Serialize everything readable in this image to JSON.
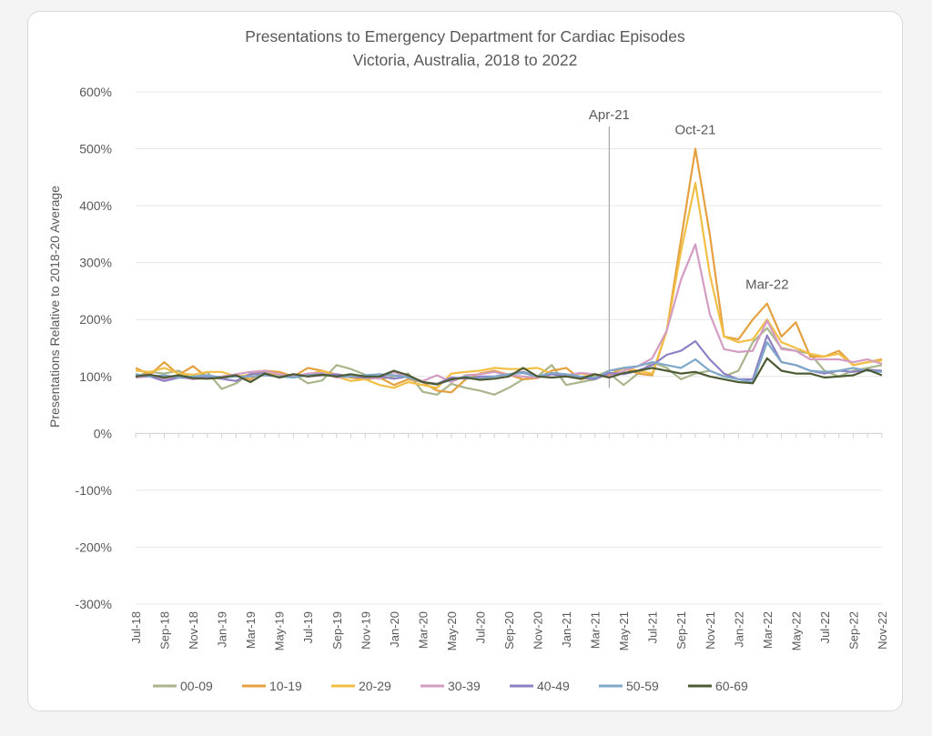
{
  "chart_data": {
    "type": "line",
    "title": "Presentations to Emergency Department for Cardiac Episodes",
    "subtitle": "Victoria, Australia, 2018 to 2022",
    "ylabel": "Presentations Relative to 2018-20 Average",
    "xlabel": "",
    "ylim": [
      -300,
      600
    ],
    "yticks": [
      "600%",
      "500%",
      "400%",
      "300%",
      "200%",
      "100%",
      "0%",
      "-100%",
      "-200%",
      "-300%"
    ],
    "ytick_values": [
      600,
      500,
      400,
      300,
      200,
      100,
      0,
      -100,
      -200,
      -300
    ],
    "grid": true,
    "legend_position": "bottom",
    "categories": [
      "Jul-18",
      "Aug-18",
      "Sep-18",
      "Oct-18",
      "Nov-18",
      "Dec-18",
      "Jan-19",
      "Feb-19",
      "Mar-19",
      "Apr-19",
      "May-19",
      "Jun-19",
      "Jul-19",
      "Aug-19",
      "Sep-19",
      "Oct-19",
      "Nov-19",
      "Dec-19",
      "Jan-20",
      "Feb-20",
      "Mar-20",
      "Apr-20",
      "May-20",
      "Jun-20",
      "Jul-20",
      "Aug-20",
      "Sep-20",
      "Oct-20",
      "Nov-20",
      "Dec-20",
      "Jan-21",
      "Feb-21",
      "Mar-21",
      "Apr-21",
      "May-21",
      "Jun-21",
      "Jul-21",
      "Aug-21",
      "Sep-21",
      "Oct-21",
      "Nov-21",
      "Dec-21",
      "Jan-22",
      "Feb-22",
      "Mar-22",
      "Apr-22",
      "May-22",
      "Jun-22",
      "Jul-22",
      "Aug-22",
      "Sep-22",
      "Oct-22",
      "Nov-22"
    ],
    "tick_labels": [
      "Jul-18",
      "Sep-18",
      "Nov-18",
      "Jan-19",
      "Mar-19",
      "May-19",
      "Jul-19",
      "Sep-19",
      "Nov-19",
      "Jan-20",
      "Mar-20",
      "May-20",
      "Jul-20",
      "Sep-20",
      "Nov-20",
      "Jan-21",
      "Mar-21",
      "May-21",
      "Jul-21",
      "Sep-21",
      "Nov-21",
      "Jan-22",
      "Mar-22",
      "May-22",
      "Jul-22",
      "Sep-22",
      "Nov-22"
    ],
    "annotations": [
      {
        "label": "Apr-21",
        "category": "Apr-21",
        "kind": "vline"
      },
      {
        "label": "Oct-21",
        "category": "Oct-21",
        "value": 500,
        "kind": "text"
      },
      {
        "label": "Mar-22",
        "category": "Mar-22",
        "value": 228,
        "kind": "text"
      }
    ],
    "series": [
      {
        "name": "00-09",
        "color": "#a9b68c",
        "values": [
          100,
          108,
          105,
          110,
          95,
          108,
          78,
          88,
          105,
          110,
          100,
          104,
          88,
          93,
          120,
          113,
          103,
          96,
          100,
          105,
          73,
          68,
          87,
          80,
          75,
          68,
          80,
          95,
          100,
          120,
          85,
          90,
          95,
          105,
          85,
          105,
          125,
          115,
          95,
          105,
          110,
          100,
          110,
          160,
          185,
          150,
          145,
          140,
          110,
          100,
          110,
          115,
          120
        ]
      },
      {
        "name": "10-19",
        "color": "#e5a13f",
        "values": [
          115,
          103,
          125,
          103,
          118,
          98,
          96,
          103,
          95,
          110,
          108,
          100,
          115,
          110,
          103,
          98,
          95,
          98,
          85,
          95,
          90,
          75,
          72,
          95,
          105,
          110,
          103,
          95,
          97,
          110,
          115,
          95,
          100,
          103,
          115,
          105,
          102,
          180,
          340,
          500,
          350,
          170,
          165,
          200,
          228,
          170,
          195,
          135,
          135,
          145,
          120,
          125,
          130
        ]
      },
      {
        "name": "20-29",
        "color": "#f1bf45",
        "values": [
          110,
          108,
          115,
          105,
          103,
          108,
          108,
          100,
          103,
          110,
          100,
          100,
          103,
          110,
          100,
          92,
          95,
          85,
          80,
          90,
          85,
          80,
          105,
          108,
          110,
          115,
          113,
          113,
          115,
          105,
          100,
          105,
          100,
          110,
          115,
          110,
          105,
          180,
          320,
          440,
          280,
          170,
          160,
          165,
          200,
          160,
          150,
          140,
          135,
          140,
          120,
          125,
          128
        ]
      },
      {
        "name": "30-39",
        "color": "#d39cc2",
        "values": [
          98,
          100,
          96,
          100,
          95,
          98,
          100,
          104,
          108,
          110,
          104,
          100,
          105,
          106,
          98,
          100,
          98,
          96,
          108,
          98,
          92,
          102,
          90,
          102,
          104,
          108,
          102,
          100,
          98,
          104,
          102,
          106,
          104,
          100,
          110,
          118,
          132,
          180,
          270,
          332,
          210,
          148,
          143,
          145,
          198,
          148,
          145,
          130,
          130,
          130,
          125,
          130,
          122
        ]
      },
      {
        "name": "40-49",
        "color": "#8f7fc4",
        "values": [
          102,
          100,
          92,
          98,
          97,
          100,
          96,
          92,
          104,
          106,
          98,
          104,
          100,
          102,
          104,
          100,
          98,
          100,
          96,
          100,
          90,
          87,
          98,
          96,
          100,
          100,
          104,
          108,
          100,
          104,
          100,
          98,
          95,
          106,
          104,
          110,
          120,
          138,
          145,
          162,
          130,
          105,
          95,
          95,
          172,
          125,
          120,
          110,
          105,
          110,
          108,
          112,
          110
        ]
      },
      {
        "name": "50-59",
        "color": "#7ea7c9",
        "values": [
          104,
          100,
          102,
          98,
          100,
          102,
          98,
          100,
          100,
          102,
          100,
          98,
          102,
          104,
          100,
          100,
          102,
          104,
          102,
          98,
          90,
          86,
          94,
          100,
          96,
          100,
          104,
          106,
          100,
          106,
          104,
          100,
          98,
          110,
          115,
          118,
          125,
          120,
          115,
          130,
          110,
          100,
          95,
          90,
          160,
          125,
          120,
          110,
          108,
          110,
          115,
          110,
          108
        ]
      },
      {
        "name": "60-69",
        "color": "#4d5b34",
        "values": [
          100,
          103,
          98,
          102,
          97,
          96,
          98,
          102,
          90,
          105,
          98,
          104,
          100,
          103,
          100,
          104,
          100,
          100,
          110,
          102,
          90,
          86,
          95,
          98,
          94,
          96,
          100,
          115,
          100,
          98,
          100,
          96,
          104,
          98,
          106,
          110,
          115,
          110,
          105,
          108,
          100,
          95,
          90,
          88,
          132,
          110,
          105,
          105,
          98,
          100,
          102,
          112,
          102
        ]
      }
    ]
  }
}
